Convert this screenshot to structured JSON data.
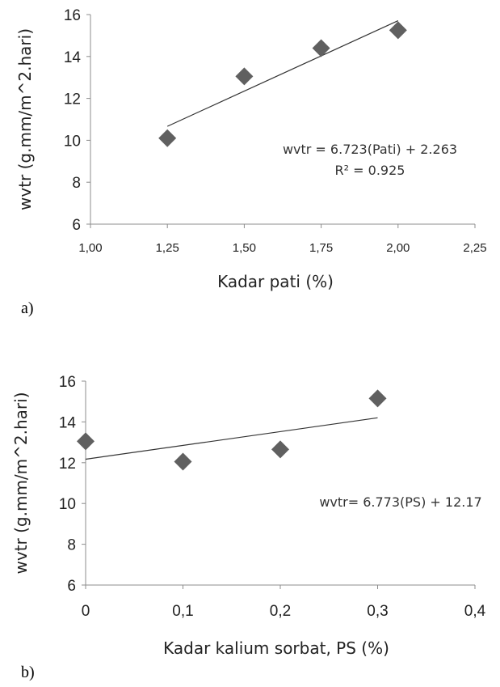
{
  "chart_data": [
    {
      "panel_label": "a)",
      "type": "scatter",
      "xlabel": "Kadar pati (%)",
      "ylabel": "wvtr (g.mm/m^2.hari)",
      "xlim": [
        1.0,
        2.25
      ],
      "ylim": [
        6,
        16
      ],
      "x_ticks": [
        1.0,
        1.25,
        1.5,
        1.75,
        2.0,
        2.25
      ],
      "x_tick_labels": [
        "1,00",
        "1,25",
        "1,50",
        "1,75",
        "2,00",
        "2,25"
      ],
      "y_ticks": [
        6,
        8,
        10,
        12,
        14,
        16
      ],
      "y_tick_labels": [
        "6",
        "8",
        "10",
        "12",
        "14",
        "16"
      ],
      "grid": false,
      "marker_color": "#606060",
      "series": [
        {
          "x": [
            1.25,
            1.5,
            1.75,
            2.0
          ],
          "y": [
            10.1,
            13.05,
            14.4,
            15.25
          ]
        }
      ],
      "trendline": {
        "slope": 6.723,
        "intercept": 2.263,
        "x_range": [
          1.25,
          2.0
        ]
      },
      "annotation_lines": [
        "wvtr = 6.723(Pati) + 2.263",
        "R² = 0.925"
      ]
    },
    {
      "panel_label": "b)",
      "type": "scatter",
      "xlabel": "Kadar kalium sorbat, PS (%)",
      "ylabel": "wvtr (g.mm/m^2.hari)",
      "xlim": [
        0,
        0.4
      ],
      "ylim": [
        6,
        16
      ],
      "x_ticks": [
        0,
        0.1,
        0.2,
        0.3,
        0.4
      ],
      "x_tick_labels": [
        "0",
        "0,1",
        "0,2",
        "0,3",
        "0,4"
      ],
      "y_ticks": [
        6,
        8,
        10,
        12,
        14,
        16
      ],
      "y_tick_labels": [
        "6",
        "8",
        "10",
        "12",
        "14",
        "16"
      ],
      "grid": false,
      "marker_color": "#606060",
      "series": [
        {
          "x": [
            0,
            0.1,
            0.2,
            0.3
          ],
          "y": [
            13.05,
            12.05,
            12.65,
            15.15
          ]
        }
      ],
      "trendline": {
        "slope": 6.773,
        "intercept": 12.17,
        "x_range": [
          0,
          0.3
        ]
      },
      "annotation_lines": [
        "wvtr= 6.773(PS) + 12.17"
      ]
    }
  ]
}
